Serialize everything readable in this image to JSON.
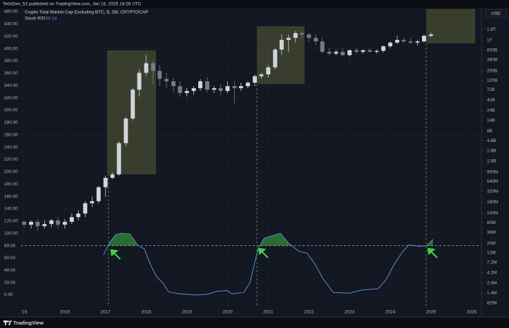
{
  "chart_data": {
    "type": "candlestick",
    "attribution": "TechDev_52 published on TradingView.com, Jan 18, 2025 18:26 UTC",
    "title": "Crypto Total Market Cap Excluding BTC, $, 2M, CRYPTOCAP",
    "currency": "USD",
    "brand": "TradingView",
    "grid": true,
    "xlim": [
      2014.915,
      2026.24
    ],
    "xticks": [
      {
        "value": 2015,
        "label": "'15"
      },
      2016,
      2017,
      2018,
      2019,
      2020,
      2021,
      2022,
      2023,
      2024,
      2025,
      2026
    ],
    "ylim": [
      -19,
      465.6
    ],
    "yticks": [
      {
        "value": 0,
        "label": "0.00"
      },
      {
        "value": 20,
        "label": "20.00"
      },
      {
        "value": 40,
        "label": "40.00"
      },
      {
        "value": 60,
        "label": "60.00"
      },
      {
        "value": 80,
        "label": "80.00"
      },
      {
        "value": 100,
        "label": "100.00"
      },
      {
        "value": 120,
        "label": "120.00"
      },
      {
        "value": 140,
        "label": "140.00"
      },
      {
        "value": 160,
        "label": "160.00"
      },
      {
        "value": 180,
        "label": "180.00"
      },
      {
        "value": 200,
        "label": "200.00"
      },
      {
        "value": 220,
        "label": "220.00"
      },
      {
        "value": 240,
        "label": "240.00"
      },
      {
        "value": 260,
        "label": "260.00"
      },
      {
        "value": 280,
        "label": "280.00"
      },
      {
        "value": 300,
        "label": "300.00"
      },
      {
        "value": 320,
        "label": "320.00"
      },
      {
        "value": 340,
        "label": "340.00"
      },
      {
        "value": 360,
        "label": "360.00"
      },
      {
        "value": 380,
        "label": "380.00"
      },
      {
        "value": 400,
        "label": "400.00"
      },
      {
        "value": 420,
        "label": "420.00"
      },
      {
        "value": 440,
        "label": "440.00"
      },
      {
        "value": 460,
        "label": "460.00"
      }
    ],
    "y2log": true,
    "y2lim": [
      681000,
      5630000000000.0
    ],
    "y2ticks": [
      {
        "value": 1800000000000.0,
        "label": "1.8T"
      },
      {
        "value": 1000000000000.0,
        "label": "1T"
      },
      {
        "value": 600000000000.0,
        "label": "600B"
      },
      {
        "value": 360000000000.0,
        "label": "360B"
      },
      {
        "value": 200000000000.0,
        "label": "200B"
      },
      {
        "value": 120000000000.0,
        "label": "120B"
      },
      {
        "value": 72000000000.0,
        "label": "72B"
      },
      {
        "value": 42000000000.0,
        "label": "42B"
      },
      {
        "value": 24000000000.0,
        "label": "24B"
      },
      {
        "value": 14000000000.0,
        "label": "14B"
      },
      {
        "value": 8000000000.0,
        "label": "8B"
      },
      {
        "value": 4800000000.0,
        "label": "4.8B"
      },
      {
        "value": 2800000000.0,
        "label": "2.8B"
      },
      {
        "value": 1600000000.0,
        "label": "1.6B"
      },
      {
        "value": 900000000.0,
        "label": "900M"
      },
      {
        "value": 540000000.0,
        "label": "540M"
      },
      {
        "value": 320000000.0,
        "label": "320M"
      },
      {
        "value": 180000000.0,
        "label": "180M"
      },
      {
        "value": 100000000.0,
        "label": "100M"
      },
      {
        "value": 60000000.0,
        "label": "60M"
      },
      {
        "value": 36000000.0,
        "label": "36M"
      },
      {
        "value": 20000000.0,
        "label": "20M"
      },
      {
        "value": 12000000.0,
        "label": "12M"
      },
      {
        "value": 7200000.0,
        "label": "7.2M"
      },
      {
        "value": 4200000.0,
        "label": "4.2M"
      },
      {
        "value": 2400000.0,
        "label": "2.4M"
      },
      {
        "value": 1400000.0,
        "label": "1.4M"
      },
      {
        "value": 825000,
        "label": "825K"
      }
    ],
    "series": [
      {
        "type": "candlestick",
        "axis": "y2",
        "up_color": "#d1d4dc",
        "down_color": "#787b86",
        "x": [
          2015,
          2015.17,
          2015.33,
          2015.5,
          2015.67,
          2015.83,
          2016,
          2016.17,
          2016.33,
          2016.5,
          2016.67,
          2016.83,
          2017,
          2017.17,
          2017.33,
          2017.5,
          2017.67,
          2017.83,
          2018,
          2018.17,
          2018.33,
          2018.5,
          2018.67,
          2018.83,
          2019,
          2019.17,
          2019.33,
          2019.5,
          2019.67,
          2019.83,
          2020,
          2020.17,
          2020.33,
          2020.5,
          2020.67,
          2020.83,
          2021,
          2021.17,
          2021.33,
          2021.5,
          2021.67,
          2021.83,
          2022,
          2022.17,
          2022.33,
          2022.5,
          2022.67,
          2022.83,
          2023,
          2023.17,
          2023.33,
          2023.5,
          2023.67,
          2023.83,
          2024,
          2024.17,
          2024.33,
          2024.5,
          2024.67,
          2024.83,
          2025
        ],
        "open": [
          63000000.0,
          54000000.0,
          63000000.0,
          50000000.0,
          56000000.0,
          68000000.0,
          54000000.0,
          63000000.0,
          81000000.0,
          98000000.0,
          170000000.0,
          190000000.0,
          400000000.0,
          660000000.0,
          790000000.0,
          4200000000.0,
          15600000000.0,
          73000000000.0,
          180000000000.0,
          300000000000.0,
          200000000000.0,
          130000000000.0,
          114000000000.0,
          88000000000.0,
          61000000000.0,
          68000000000.0,
          79000000000.0,
          114000000000.0,
          73000000000.0,
          79000000000.0,
          68000000000.0,
          88000000000.0,
          79000000000.0,
          88000000000.0,
          106000000000.0,
          150000000000.0,
          165000000000.0,
          240000000000.0,
          620000000000.0,
          1040000000000.0,
          1160000000000.0,
          1500000000000.0,
          1390000000000.0,
          1160000000000.0,
          960000000000.0,
          550000000000.0,
          500000000000.0,
          550000000000.0,
          460000000000.0,
          600000000000.0,
          550000000000.0,
          600000000000.0,
          550000000000.0,
          580000000000.0,
          740000000000.0,
          900000000000.0,
          1040000000000.0,
          960000000000.0,
          900000000000.0,
          960000000000.0,
          1290000000000.0
        ],
        "high": [
          68000000.0,
          68000000.0,
          73000000.0,
          68000000.0,
          73000000.0,
          81000000.0,
          73000000.0,
          98000000.0,
          117000000.0,
          190000000.0,
          240000000.0,
          430000000.0,
          740000000.0,
          890000000.0,
          4600000000.0,
          17000000000.0,
          79000000000.0,
          220000000000.0,
          460000000000.0,
          340000000000.0,
          270000000000.0,
          180000000000.0,
          140000000000.0,
          114000000000.0,
          79000000000.0,
          88000000000.0,
          130000000000.0,
          140000000000.0,
          88000000000.0,
          98000000000.0,
          114000000000.0,
          114000000000.0,
          106000000000.0,
          114000000000.0,
          165000000000.0,
          180000000000.0,
          270000000000.0,
          670000000000.0,
          1390000000000.0,
          1390000000000.0,
          1670000000000.0,
          1670000000000.0,
          1500000000000.0,
          1390000000000.0,
          1160000000000.0,
          670000000000.0,
          620000000000.0,
          670000000000.0,
          620000000000.0,
          670000000000.0,
          620000000000.0,
          670000000000.0,
          620000000000.0,
          770000000000.0,
          960000000000.0,
          1290000000000.0,
          1160000000000.0,
          1160000000000.0,
          1040000000000.0,
          1390000000000.0,
          1550000000000.0
        ],
        "low": [
          47000000.0,
          44000000.0,
          39000000.0,
          44000000.0,
          47000000.0,
          44000000.0,
          44000000.0,
          56000000.0,
          68000000.0,
          81000000.0,
          140000000.0,
          170000000.0,
          240000000.0,
          620000000.0,
          740000000.0,
          3600000000.0,
          14000000000.0,
          51000000000.0,
          150000000000.0,
          98000000000.0,
          88000000000.0,
          79000000000.0,
          61000000000.0,
          51000000000.0,
          51000000000.0,
          55000000000.0,
          68000000000.0,
          61000000000.0,
          61000000000.0,
          55000000000.0,
          61000000000.0,
          35000000000.0,
          68000000000.0,
          79000000000.0,
          88000000000.0,
          130000000000.0,
          140000000000.0,
          220000000000.0,
          460000000000.0,
          550000000000.0,
          900000000000.0,
          1160000000000.0,
          960000000000.0,
          800000000000.0,
          500000000000.0,
          460000000000.0,
          460000000000.0,
          430000000000.0,
          430000000000.0,
          500000000000.0,
          500000000000.0,
          530000000000.0,
          500000000000.0,
          530000000000.0,
          670000000000.0,
          830000000000.0,
          900000000000.0,
          830000000000.0,
          770000000000.0,
          900000000000.0,
          1200000000000.0
        ],
        "close": [
          54000000.0,
          63000000.0,
          50000000.0,
          56000000.0,
          68000000.0,
          54000000.0,
          63000000.0,
          81000000.0,
          98000000.0,
          170000000.0,
          190000000.0,
          400000000.0,
          660000000.0,
          790000000.0,
          4200000000.0,
          15600000000.0,
          73000000000.0,
          180000000000.0,
          300000000000.0,
          200000000000.0,
          130000000000.0,
          114000000000.0,
          88000000000.0,
          61000000000.0,
          68000000000.0,
          79000000000.0,
          114000000000.0,
          73000000000.0,
          79000000000.0,
          68000000000.0,
          88000000000.0,
          79000000000.0,
          88000000000.0,
          106000000000.0,
          150000000000.0,
          165000000000.0,
          240000000000.0,
          620000000000.0,
          1040000000000.0,
          1160000000000.0,
          1500000000000.0,
          1390000000000.0,
          1160000000000.0,
          960000000000.0,
          550000000000.0,
          500000000000.0,
          550000000000.0,
          460000000000.0,
          600000000000.0,
          550000000000.0,
          600000000000.0,
          550000000000.0,
          580000000000.0,
          740000000000.0,
          900000000000.0,
          1040000000000.0,
          960000000000.0,
          900000000000.0,
          960000000000.0,
          1290000000000.0,
          1390000000000.0
        ]
      },
      {
        "type": "line",
        "axis": "y",
        "name": "Stoch RSI",
        "last_value": 90.14,
        "color": "#5b8fd4",
        "fill_color": "#2e7d32",
        "level": 80,
        "level_color": "#9598a1",
        "x": [
          2016.95,
          2017.1,
          2017.25,
          2017.4,
          2017.6,
          2017.8,
          2017.95,
          2018.1,
          2018.25,
          2018.4,
          2018.55,
          2018.8,
          2019.2,
          2019.5,
          2019.75,
          2020,
          2020.1,
          2020.4,
          2020.55,
          2020.75,
          2020.9,
          2021.1,
          2021.3,
          2021.5,
          2021.75,
          2021.95,
          2022.15,
          2022.35,
          2022.6,
          2023,
          2023.3,
          2023.7,
          2023.9,
          2024.1,
          2024.3,
          2024.45,
          2024.7,
          2024.9,
          2025.05
        ],
        "values": [
          65,
          85,
          98,
          100,
          99,
          80,
          75,
          50,
          30,
          20,
          5,
          2,
          0,
          1,
          6,
          7,
          2,
          4,
          20,
          75,
          92,
          96,
          100,
          84,
          71,
          68,
          50,
          26,
          4,
          3,
          8,
          10,
          25,
          50,
          70,
          81,
          79,
          80,
          90.14
        ]
      }
    ]
  }
}
